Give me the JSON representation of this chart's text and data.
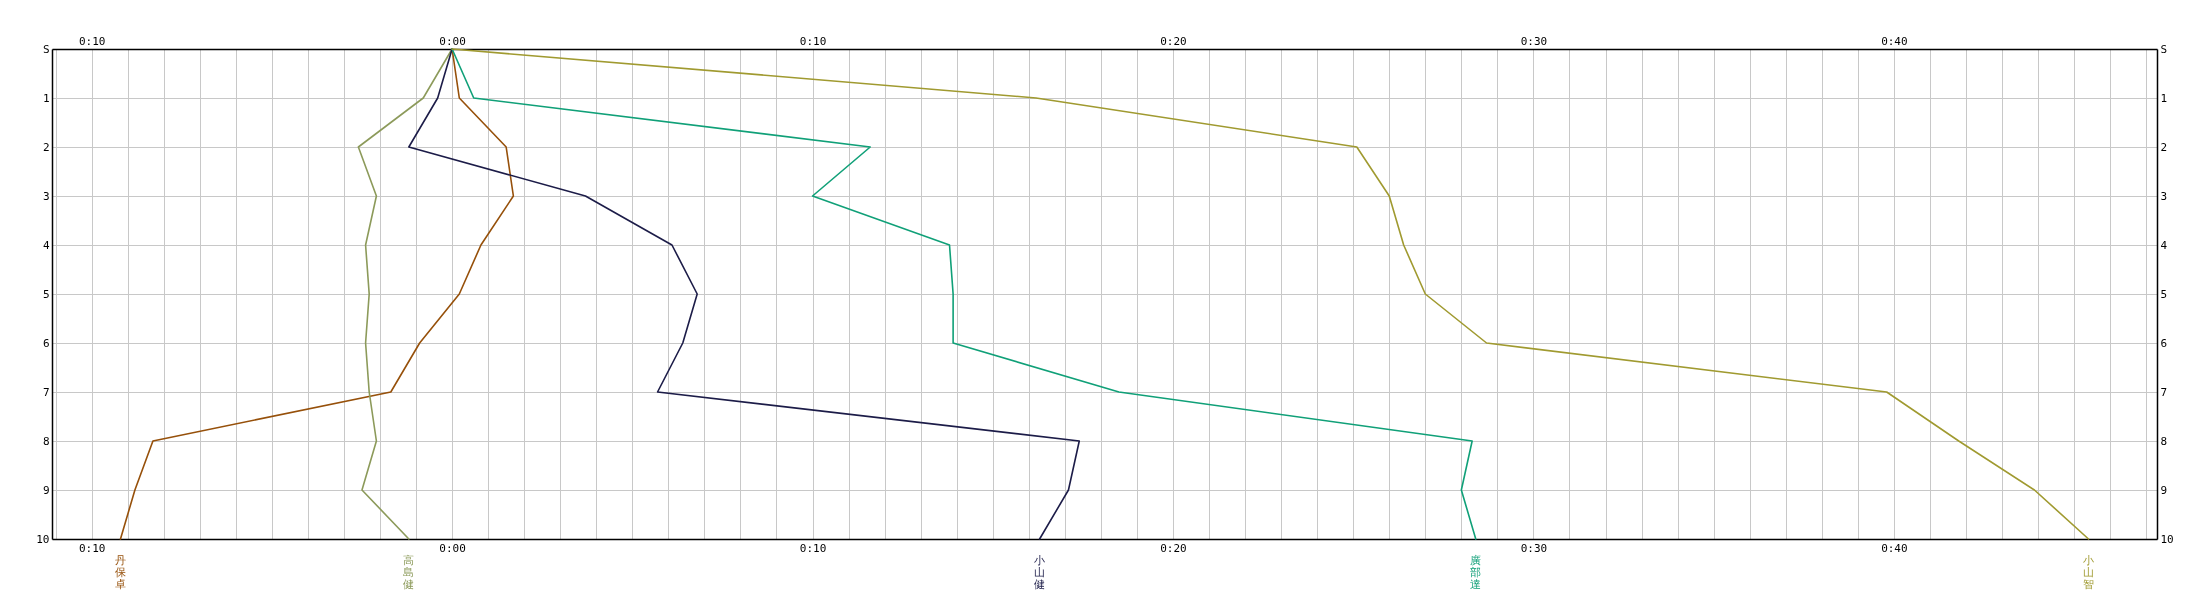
{
  "chart_data": {
    "type": "line",
    "grid": true,
    "orientation": "horizontal",
    "categories": [
      "S",
      "1",
      "2",
      "3",
      "4",
      "5",
      "6",
      "7",
      "8",
      "9",
      "10"
    ],
    "xlim": [
      -11.1,
      47.3
    ],
    "xticks": [
      {
        "value": -11,
        "label": null
      },
      {
        "value": -10,
        "label": "0:10"
      },
      {
        "value": -9,
        "label": null
      },
      {
        "value": -8,
        "label": null
      },
      {
        "value": -7,
        "label": null
      },
      {
        "value": -6,
        "label": null
      },
      {
        "value": -5,
        "label": null
      },
      {
        "value": -4,
        "label": null
      },
      {
        "value": -3,
        "label": null
      },
      {
        "value": -2,
        "label": null
      },
      {
        "value": -1,
        "label": null
      },
      {
        "value": 0,
        "label": "0:00"
      },
      {
        "value": 1,
        "label": null
      },
      {
        "value": 2,
        "label": null
      },
      {
        "value": 3,
        "label": null
      },
      {
        "value": 4,
        "label": null
      },
      {
        "value": 5,
        "label": null
      },
      {
        "value": 6,
        "label": null
      },
      {
        "value": 7,
        "label": null
      },
      {
        "value": 8,
        "label": null
      },
      {
        "value": 9,
        "label": null
      },
      {
        "value": 10,
        "label": "0:10"
      },
      {
        "value": 11,
        "label": null
      },
      {
        "value": 12,
        "label": null
      },
      {
        "value": 13,
        "label": null
      },
      {
        "value": 14,
        "label": null
      },
      {
        "value": 15,
        "label": null
      },
      {
        "value": 16,
        "label": null
      },
      {
        "value": 17,
        "label": null
      },
      {
        "value": 18,
        "label": null
      },
      {
        "value": 19,
        "label": null
      },
      {
        "value": 20,
        "label": "0:20"
      },
      {
        "value": 21,
        "label": null
      },
      {
        "value": 22,
        "label": null
      },
      {
        "value": 23,
        "label": null
      },
      {
        "value": 24,
        "label": null
      },
      {
        "value": 25,
        "label": null
      },
      {
        "value": 26,
        "label": null
      },
      {
        "value": 27,
        "label": null
      },
      {
        "value": 28,
        "label": null
      },
      {
        "value": 29,
        "label": null
      },
      {
        "value": 30,
        "label": "0:30"
      },
      {
        "value": 31,
        "label": null
      },
      {
        "value": 32,
        "label": null
      },
      {
        "value": 33,
        "label": null
      },
      {
        "value": 34,
        "label": null
      },
      {
        "value": 35,
        "label": null
      },
      {
        "value": 36,
        "label": null
      },
      {
        "value": 37,
        "label": null
      },
      {
        "value": 38,
        "label": null
      },
      {
        "value": 39,
        "label": null
      },
      {
        "value": 40,
        "label": "0:40"
      },
      {
        "value": 41,
        "label": null
      },
      {
        "value": 42,
        "label": null
      },
      {
        "value": 43,
        "label": null
      },
      {
        "value": 44,
        "label": null
      },
      {
        "value": 45,
        "label": null
      },
      {
        "value": 46,
        "label": null
      },
      {
        "value": 47,
        "label": null
      }
    ],
    "x2lim": [
      -11.1,
      47.3
    ],
    "x2ticks": [
      {
        "value": -10,
        "label": "0:10"
      },
      {
        "value": 0,
        "label": "0:00"
      },
      {
        "value": 10,
        "label": "0:10"
      },
      {
        "value": 20,
        "label": "0:20"
      },
      {
        "value": 30,
        "label": "0:30"
      },
      {
        "value": 40,
        "label": "0:40"
      }
    ],
    "series": [
      {
        "name": "丹保卓",
        "color": "#96500a",
        "values": [
          0,
          0.2,
          1.5,
          1.7,
          0.8,
          0.2,
          -0.9,
          -1.7,
          -8.3,
          -8.8,
          -9.2
        ]
      },
      {
        "name": "高島健",
        "color": "#8c9a5a",
        "values": [
          0,
          -0.8,
          -2.6,
          -2.1,
          -2.4,
          -2.3,
          -2.4,
          -2.3,
          -2.1,
          -2.5,
          -1.2
        ]
      },
      {
        "name": "小山健",
        "color": "#1c1c48",
        "values": [
          0,
          -0.4,
          -1.2,
          3.7,
          6.1,
          6.8,
          6.4,
          5.7,
          17.4,
          17.1,
          16.3
        ]
      },
      {
        "name": "廣部達",
        "color": "#10a078",
        "values": [
          0,
          0.6,
          11.6,
          10.0,
          13.8,
          13.9,
          13.9,
          18.5,
          28.3,
          28.0,
          28.4
        ]
      },
      {
        "name": "小山智",
        "color": "#a09a30",
        "values": [
          0,
          16.2,
          25.1,
          26.0,
          26.4,
          27.0,
          28.7,
          39.8,
          41.8,
          43.9,
          45.4
        ]
      }
    ]
  }
}
